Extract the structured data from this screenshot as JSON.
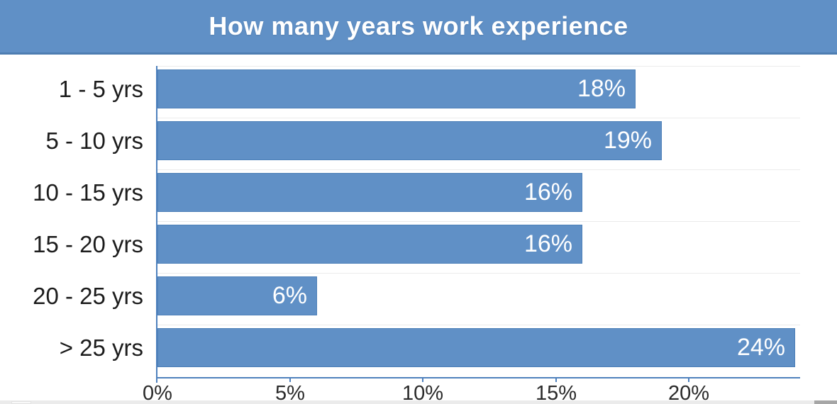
{
  "title": "How many years work experience",
  "colors": {
    "header_bg": "#6090c6",
    "header_border": "#4d7db1",
    "bar_fill": "#6090c6",
    "bar_border": "#4d80b8",
    "axis_line": "#4f81bd",
    "category_text": "#1c1c1c",
    "bar_label_text": "#ffffff",
    "tick_text": "#2a2a2a"
  },
  "chart_data": {
    "type": "bar",
    "orientation": "horizontal",
    "title": "How many years work experience",
    "categories": [
      "1 - 5 yrs",
      "5 - 10 yrs",
      "10 - 15 yrs",
      "15 - 20 yrs",
      "20 - 25 yrs",
      "> 25 yrs"
    ],
    "values": [
      18,
      19,
      16,
      16,
      6,
      24
    ],
    "value_labels": [
      "18%",
      "19%",
      "16%",
      "16%",
      "6%",
      "24%"
    ],
    "x_tick_values": [
      0,
      5,
      10,
      15,
      20
    ],
    "x_tick_labels": [
      "0%",
      "5%",
      "10%",
      "15%",
      "20%"
    ],
    "xlim": [
      0,
      24.2
    ],
    "xlabel": "",
    "ylabel": "",
    "grid": "faint horizontal row separators in plot area only",
    "legend": "none",
    "value_label_position": "inside-end",
    "bar_label_color": "#ffffff"
  }
}
